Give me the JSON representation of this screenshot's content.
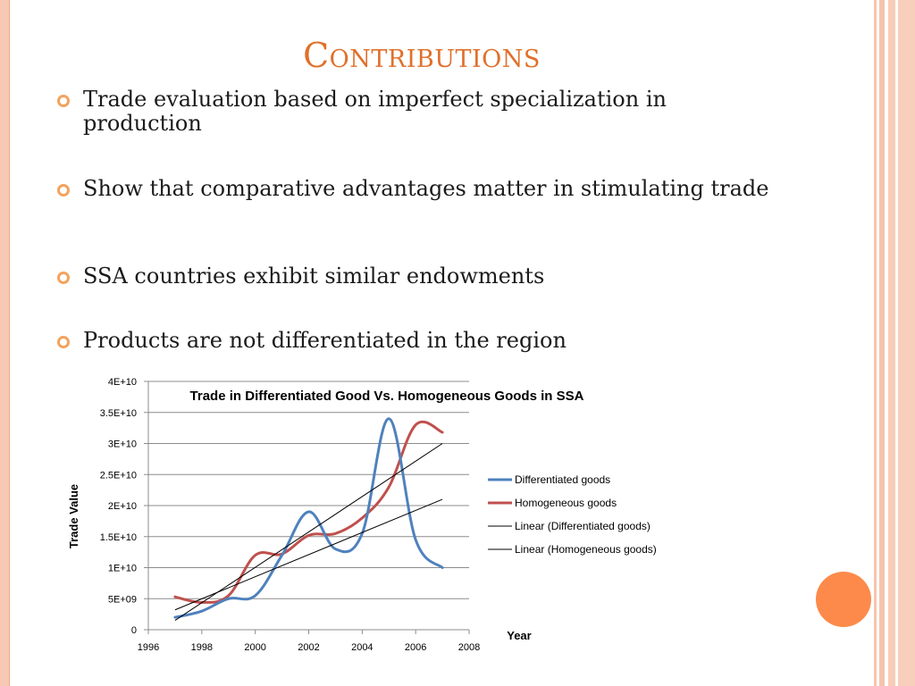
{
  "slide": {
    "title": "Contributions",
    "bullets": [
      "Trade evaluation based on imperfect specialization in production",
      "Show that comparative advantages matter in stimulating trade",
      "SSA countries exhibit similar endowments",
      "Products are not differentiated in the region"
    ]
  },
  "colors": {
    "title": "#e0702c",
    "bullet": "#f3a35e",
    "differentiated": "#4f81bd",
    "homogeneous": "#c0504d",
    "trend": "#000000",
    "accent_circle": "#fd8a4a"
  },
  "chart_data": {
    "type": "line",
    "title": "Trade in Differentiated Good Vs. Homogeneous Goods in SSA",
    "xlabel": "Year",
    "ylabel": "Trade Value",
    "xlim": [
      1996,
      2008
    ],
    "ylim": [
      0,
      40000000000
    ],
    "x_ticks": [
      "1996",
      "1998",
      "2000",
      "2002",
      "2004",
      "2006",
      "2008"
    ],
    "y_ticks": [
      "0",
      "5E+09",
      "1E+10",
      "1.5E+10",
      "2E+10",
      "2.5E+10",
      "3E+10",
      "3.5E+10",
      "4E+10"
    ],
    "grid": "horizontal",
    "legend_position": "right",
    "x": [
      1997,
      1998,
      1999,
      2000,
      2001,
      2002,
      2003,
      2004,
      2005,
      2006,
      2007
    ],
    "series": [
      {
        "name": "Differentiated goods",
        "values": [
          2000000000,
          3000000000,
          5000000000,
          5500000000,
          12000000000,
          19000000000,
          13000000000,
          15500000000,
          34000000000,
          14500000000,
          10000000000
        ]
      },
      {
        "name": "Homogeneous goods",
        "values": [
          5300000000,
          4400000000,
          5500000000,
          12000000000,
          12200000000,
          15200000000,
          15500000000,
          18000000000,
          23000000000,
          33000000000,
          31800000000
        ]
      }
    ],
    "trendlines": [
      {
        "name": "Linear (Differentiated goods)",
        "x": [
          1997,
          2007
        ],
        "values": [
          1500000000,
          30000000000
        ]
      },
      {
        "name": "Linear (Homogeneous goods)",
        "x": [
          1997,
          2007
        ],
        "values": [
          3200000000,
          21000000000
        ]
      }
    ]
  }
}
